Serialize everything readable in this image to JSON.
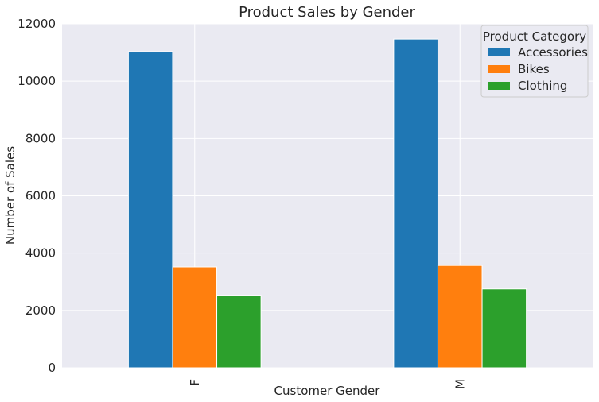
{
  "chart_data": {
    "type": "bar",
    "title": "Product Sales by Gender",
    "xlabel": "Customer Gender",
    "ylabel": "Number of Sales",
    "categories": [
      "F",
      "M"
    ],
    "ylim": [
      0,
      12000
    ],
    "yticks": [
      0,
      2000,
      4000,
      6000,
      8000,
      10000,
      12000
    ],
    "grid": true,
    "legend": {
      "title": "Product Category",
      "placement": "top-right"
    },
    "series": [
      {
        "name": "Accessories",
        "color": "#1f77b4",
        "values": [
          11030,
          11470
        ]
      },
      {
        "name": "Bikes",
        "color": "#ff7f0e",
        "values": [
          3520,
          3570
        ]
      },
      {
        "name": "Clothing",
        "color": "#2ca02c",
        "values": [
          2530,
          2750
        ]
      }
    ]
  }
}
